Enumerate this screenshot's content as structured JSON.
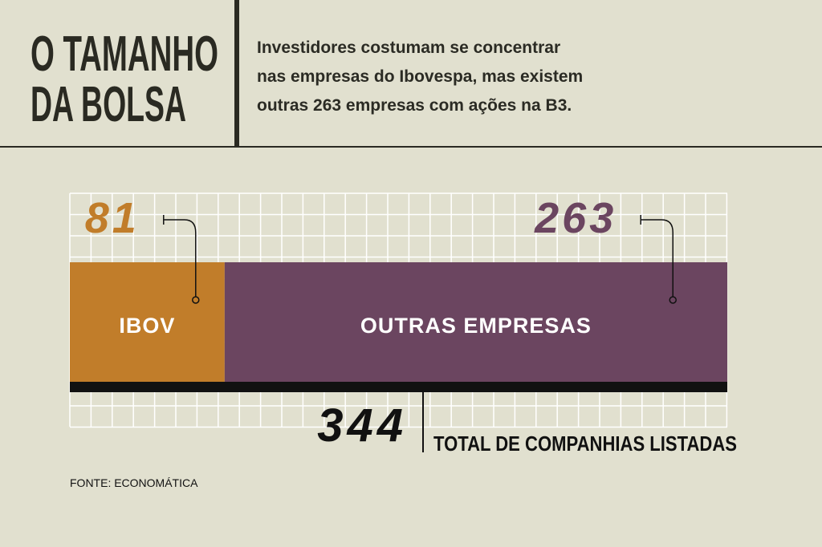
{
  "chart_data": {
    "type": "stacked-bar",
    "title": [
      "O TAMANHO",
      "DA BOLSA"
    ],
    "subtitle": [
      "Investidores costumam se concentrar",
      "nas empresas do Ibovespa, mas existem",
      "outras 263 empresas com ações na B3."
    ],
    "series": [
      {
        "name": "IBOV",
        "color": "#c17d2a",
        "values": [
          81
        ]
      },
      {
        "name": "OUTRAS EMPRESAS",
        "color": "#6b4560",
        "values": [
          263
        ]
      }
    ],
    "total": {
      "value": 344,
      "label": "TOTAL DE COMPANHIAS LISTADAS"
    },
    "xlim": [
      0,
      344
    ],
    "grid": true,
    "source": "FONTE: ECONOMÁTICA"
  }
}
